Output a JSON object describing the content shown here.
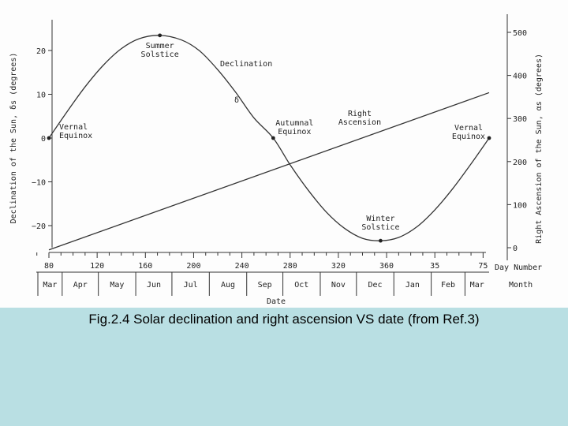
{
  "caption": "Fig.2.4 Solar declination and right ascension VS date (from Ref.3)",
  "chart_data": {
    "type": "line",
    "xlabel": "Date",
    "x_unit_label": "Day Number",
    "month_axis_label": "Month",
    "y_left_label": "Declination of the Sun, δs (degrees)",
    "y_right_label": "Right Ascension of the Sun, αs (degrees)",
    "y_left_ticks": [
      20,
      10,
      0,
      -10,
      -20
    ],
    "y_left_tick_labels": [
      "20",
      "10",
      "0",
      "−10",
      "−20"
    ],
    "y_left_range": [
      -25,
      25
    ],
    "y_right_ticks": [
      500,
      400,
      300,
      200,
      100,
      0
    ],
    "y_right_tick_labels": [
      "500",
      "400",
      "300",
      "200",
      "100",
      "0"
    ],
    "y_right_range": [
      -20,
      520
    ],
    "x_range": [
      80,
      445
    ],
    "day_ticks": [
      {
        "day": 80,
        "label": "80"
      },
      {
        "day": 120,
        "label": "120"
      },
      {
        "day": 160,
        "label": "160"
      },
      {
        "day": 200,
        "label": "200"
      },
      {
        "day": 240,
        "label": "240"
      },
      {
        "day": 280,
        "label": "280"
      },
      {
        "day": 320,
        "label": "320"
      },
      {
        "day": 360,
        "label": "360"
      },
      {
        "day": 400,
        "label": "35"
      },
      {
        "day": 440,
        "label": "75"
      }
    ],
    "months": [
      {
        "label": "Mar",
        "start": 60
      },
      {
        "label": "Apr",
        "start": 91
      },
      {
        "label": "May",
        "start": 121
      },
      {
        "label": "Jun",
        "start": 152
      },
      {
        "label": "Jul",
        "start": 182
      },
      {
        "label": "Aug",
        "start": 213
      },
      {
        "label": "Sep",
        "start": 244
      },
      {
        "label": "Oct",
        "start": 274
      },
      {
        "label": "Nov",
        "start": 305
      },
      {
        "label": "Dec",
        "start": 335
      },
      {
        "label": "Jan",
        "start": 366
      },
      {
        "label": "Feb",
        "start": 397
      },
      {
        "label": "Mar",
        "start": 425
      }
    ],
    "series": [
      {
        "name": "Declination",
        "axis": "left",
        "curve_label": "δ",
        "points": [
          [
            80,
            0
          ],
          [
            95,
            6.0
          ],
          [
            110,
            11.7
          ],
          [
            125,
            16.6
          ],
          [
            140,
            20.4
          ],
          [
            155,
            22.7
          ],
          [
            172,
            23.45
          ],
          [
            190,
            22.4
          ],
          [
            205,
            19.9
          ],
          [
            220,
            15.6
          ],
          [
            235,
            10.4
          ],
          [
            250,
            4.6
          ],
          [
            266,
            0
          ],
          [
            280,
            -6.1
          ],
          [
            295,
            -11.9
          ],
          [
            310,
            -16.9
          ],
          [
            325,
            -20.6
          ],
          [
            340,
            -22.9
          ],
          [
            355,
            -23.45
          ],
          [
            370,
            -22.7
          ],
          [
            385,
            -20.3
          ],
          [
            400,
            -16.4
          ],
          [
            415,
            -11.5
          ],
          [
            430,
            -5.9
          ],
          [
            445,
            0
          ]
        ]
      },
      {
        "name": "Right Ascension",
        "axis": "right",
        "points": [
          [
            80,
            -5
          ],
          [
            445,
            360
          ]
        ]
      }
    ],
    "annotations": [
      {
        "label": "Summer Solstice",
        "day": 172,
        "value": 23.45
      },
      {
        "label": "Vernal Equinox",
        "day": 80,
        "value": 0
      },
      {
        "label": "Autumnal Equinox",
        "day": 266,
        "value": 0
      },
      {
        "label": "Winter Solstice",
        "day": 355,
        "value": -23.45
      },
      {
        "label": "Vernal Equinox",
        "day": 445,
        "value": 0
      }
    ],
    "grid": false
  }
}
